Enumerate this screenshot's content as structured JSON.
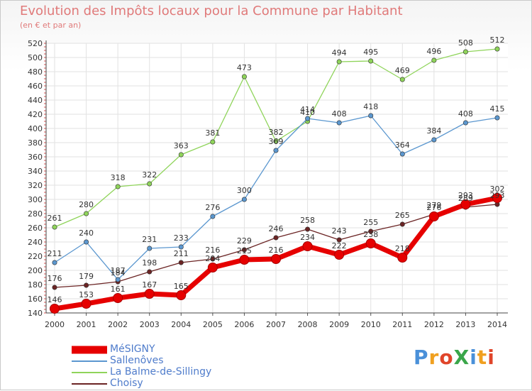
{
  "title": "Evolution des Impôts locaux pour la Commune par Habitant",
  "subtitle": "(en € et par an)",
  "brand": {
    "text": "ProXiti",
    "colors": [
      "#4a90d9",
      "#f0a020",
      "#e0452a",
      "#3aa64a",
      "#4a90d9",
      "#f0a020",
      "#e0452a"
    ]
  },
  "chart_data": {
    "type": "line",
    "categories": [
      "2000",
      "2001",
      "2002",
      "2003",
      "2004",
      "2005",
      "2006",
      "2007",
      "2008",
      "2009",
      "2010",
      "2011",
      "2012",
      "2013",
      "2014"
    ],
    "ylim": [
      140,
      520
    ],
    "yticks": [
      140,
      160,
      180,
      200,
      220,
      240,
      260,
      280,
      300,
      320,
      340,
      360,
      380,
      400,
      420,
      440,
      460,
      480,
      500,
      520
    ],
    "grid": true,
    "legend_position": "bottom-left",
    "series": [
      {
        "name": "MéSIGNY",
        "color": "#e60000",
        "style": "thick",
        "values": [
          146,
          153,
          161,
          167,
          165,
          204,
          215,
          216,
          234,
          222,
          238,
          218,
          276,
          293,
          302
        ]
      },
      {
        "name": "Sallenôves",
        "color": "#5b97cf",
        "style": "thin",
        "values": [
          211,
          240,
          187,
          231,
          233,
          276,
          300,
          369,
          414,
          408,
          418,
          364,
          384,
          408,
          415
        ]
      },
      {
        "name": "La Balme-de-Sillingy",
        "color": "#8fd45a",
        "style": "thin",
        "values": [
          261,
          280,
          318,
          322,
          363,
          381,
          473,
          382,
          410,
          494,
          495,
          469,
          496,
          508,
          512
        ]
      },
      {
        "name": "Choisy",
        "color": "#6b2424",
        "style": "thin",
        "values": [
          176,
          179,
          184,
          198,
          211,
          216,
          229,
          246,
          258,
          243,
          255,
          265,
          279,
          289,
          293
        ]
      }
    ]
  }
}
